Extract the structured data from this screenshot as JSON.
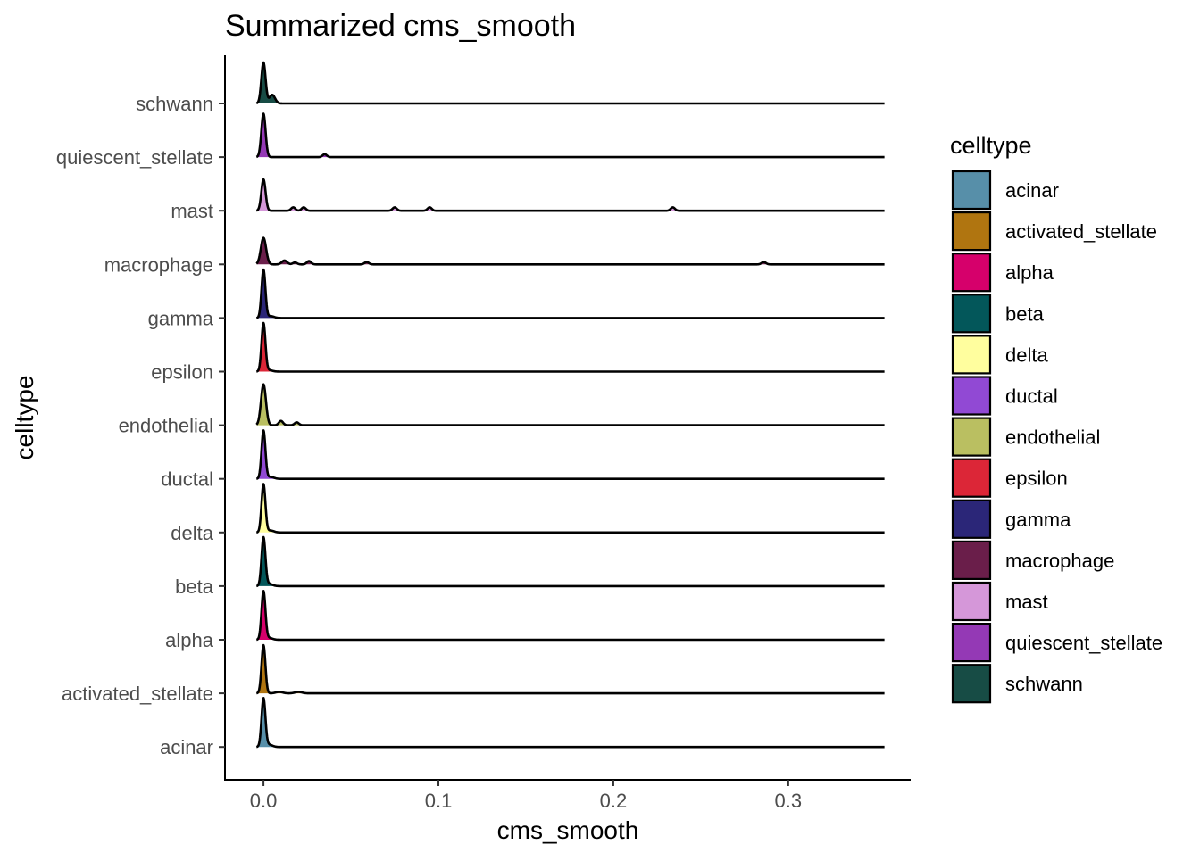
{
  "chart_data": {
    "type": "ridgeline",
    "title": "Summarized cms_smooth",
    "xlabel": "cms_smooth",
    "ylabel": "celltype",
    "xlim": [
      -0.022,
      0.37
    ],
    "x_ticks": [
      0.0,
      0.1,
      0.2,
      0.3
    ],
    "x_tick_labels": [
      "0.0",
      "0.1",
      "0.2",
      "0.3"
    ],
    "grid": false,
    "legend": {
      "title": "celltype",
      "position": "right",
      "entries": [
        "acinar",
        "activated_stellate",
        "alpha",
        "beta",
        "delta",
        "ductal",
        "endothelial",
        "epsilon",
        "gamma",
        "macrophage",
        "mast",
        "quiescent_stellate",
        "schwann"
      ]
    },
    "x_range_of_densities": [
      -0.004,
      0.355
    ],
    "series": [
      {
        "name": "acinar",
        "color": "#578FA9",
        "peaks": [
          {
            "x": 0.0,
            "h": 1.0,
            "w": 0.0011
          },
          {
            "x": 0.003,
            "h": 0.05,
            "w": 0.002
          }
        ]
      },
      {
        "name": "activated_stellate",
        "color": "#B07510",
        "peaks": [
          {
            "x": 0.0,
            "h": 1.0,
            "w": 0.0011
          },
          {
            "x": 0.009,
            "h": 0.03,
            "w": 0.002
          },
          {
            "x": 0.02,
            "h": 0.03,
            "w": 0.002
          }
        ]
      },
      {
        "name": "alpha",
        "color": "#D6006B",
        "peaks": [
          {
            "x": 0.0,
            "h": 1.0,
            "w": 0.0011
          },
          {
            "x": 0.003,
            "h": 0.04,
            "w": 0.002
          }
        ]
      },
      {
        "name": "beta",
        "color": "#03575A",
        "peaks": [
          {
            "x": 0.0,
            "h": 1.0,
            "w": 0.0011
          },
          {
            "x": 0.003,
            "h": 0.05,
            "w": 0.002
          }
        ]
      },
      {
        "name": "delta",
        "color": "#FFFE9E",
        "peaks": [
          {
            "x": 0.0,
            "h": 1.0,
            "w": 0.0011
          },
          {
            "x": 0.004,
            "h": 0.04,
            "w": 0.002
          }
        ]
      },
      {
        "name": "ductal",
        "color": "#9149D4",
        "peaks": [
          {
            "x": 0.0,
            "h": 1.0,
            "w": 0.0011
          },
          {
            "x": 0.004,
            "h": 0.04,
            "w": 0.002
          }
        ]
      },
      {
        "name": "endothelial",
        "color": "#BABF61",
        "peaks": [
          {
            "x": 0.0,
            "h": 0.85,
            "w": 0.0014
          },
          {
            "x": 0.01,
            "h": 0.09,
            "w": 0.0012
          },
          {
            "x": 0.019,
            "h": 0.06,
            "w": 0.0012
          }
        ]
      },
      {
        "name": "epsilon",
        "color": "#DC2637",
        "peaks": [
          {
            "x": 0.0,
            "h": 1.0,
            "w": 0.0011
          },
          {
            "x": 0.003,
            "h": 0.03,
            "w": 0.002
          }
        ]
      },
      {
        "name": "gamma",
        "color": "#2B2678",
        "peaks": [
          {
            "x": 0.0,
            "h": 1.0,
            "w": 0.0011
          },
          {
            "x": 0.004,
            "h": 0.04,
            "w": 0.002
          }
        ]
      },
      {
        "name": "macrophage",
        "color": "#6A1E4A",
        "peaks": [
          {
            "x": 0.0,
            "h": 0.55,
            "w": 0.0015
          },
          {
            "x": 0.012,
            "h": 0.08,
            "w": 0.0015
          },
          {
            "x": 0.018,
            "h": 0.04,
            "w": 0.0012
          },
          {
            "x": 0.026,
            "h": 0.07,
            "w": 0.0012
          },
          {
            "x": 0.059,
            "h": 0.05,
            "w": 0.0012
          },
          {
            "x": 0.286,
            "h": 0.05,
            "w": 0.0012
          }
        ]
      },
      {
        "name": "mast",
        "color": "#D597D9",
        "peaks": [
          {
            "x": 0.0,
            "h": 0.65,
            "w": 0.0012
          },
          {
            "x": 0.017,
            "h": 0.07,
            "w": 0.0012
          },
          {
            "x": 0.023,
            "h": 0.07,
            "w": 0.0012
          },
          {
            "x": 0.075,
            "h": 0.07,
            "w": 0.0012
          },
          {
            "x": 0.095,
            "h": 0.07,
            "w": 0.0012
          },
          {
            "x": 0.234,
            "h": 0.07,
            "w": 0.0012
          }
        ]
      },
      {
        "name": "quiescent_stellate",
        "color": "#9439B5",
        "peaks": [
          {
            "x": 0.0,
            "h": 0.9,
            "w": 0.0012
          },
          {
            "x": 0.035,
            "h": 0.06,
            "w": 0.0012
          }
        ]
      },
      {
        "name": "schwann",
        "color": "#174C45",
        "peaks": [
          {
            "x": 0.0,
            "h": 0.85,
            "w": 0.0012
          },
          {
            "x": 0.005,
            "h": 0.18,
            "w": 0.0016
          }
        ]
      }
    ]
  }
}
